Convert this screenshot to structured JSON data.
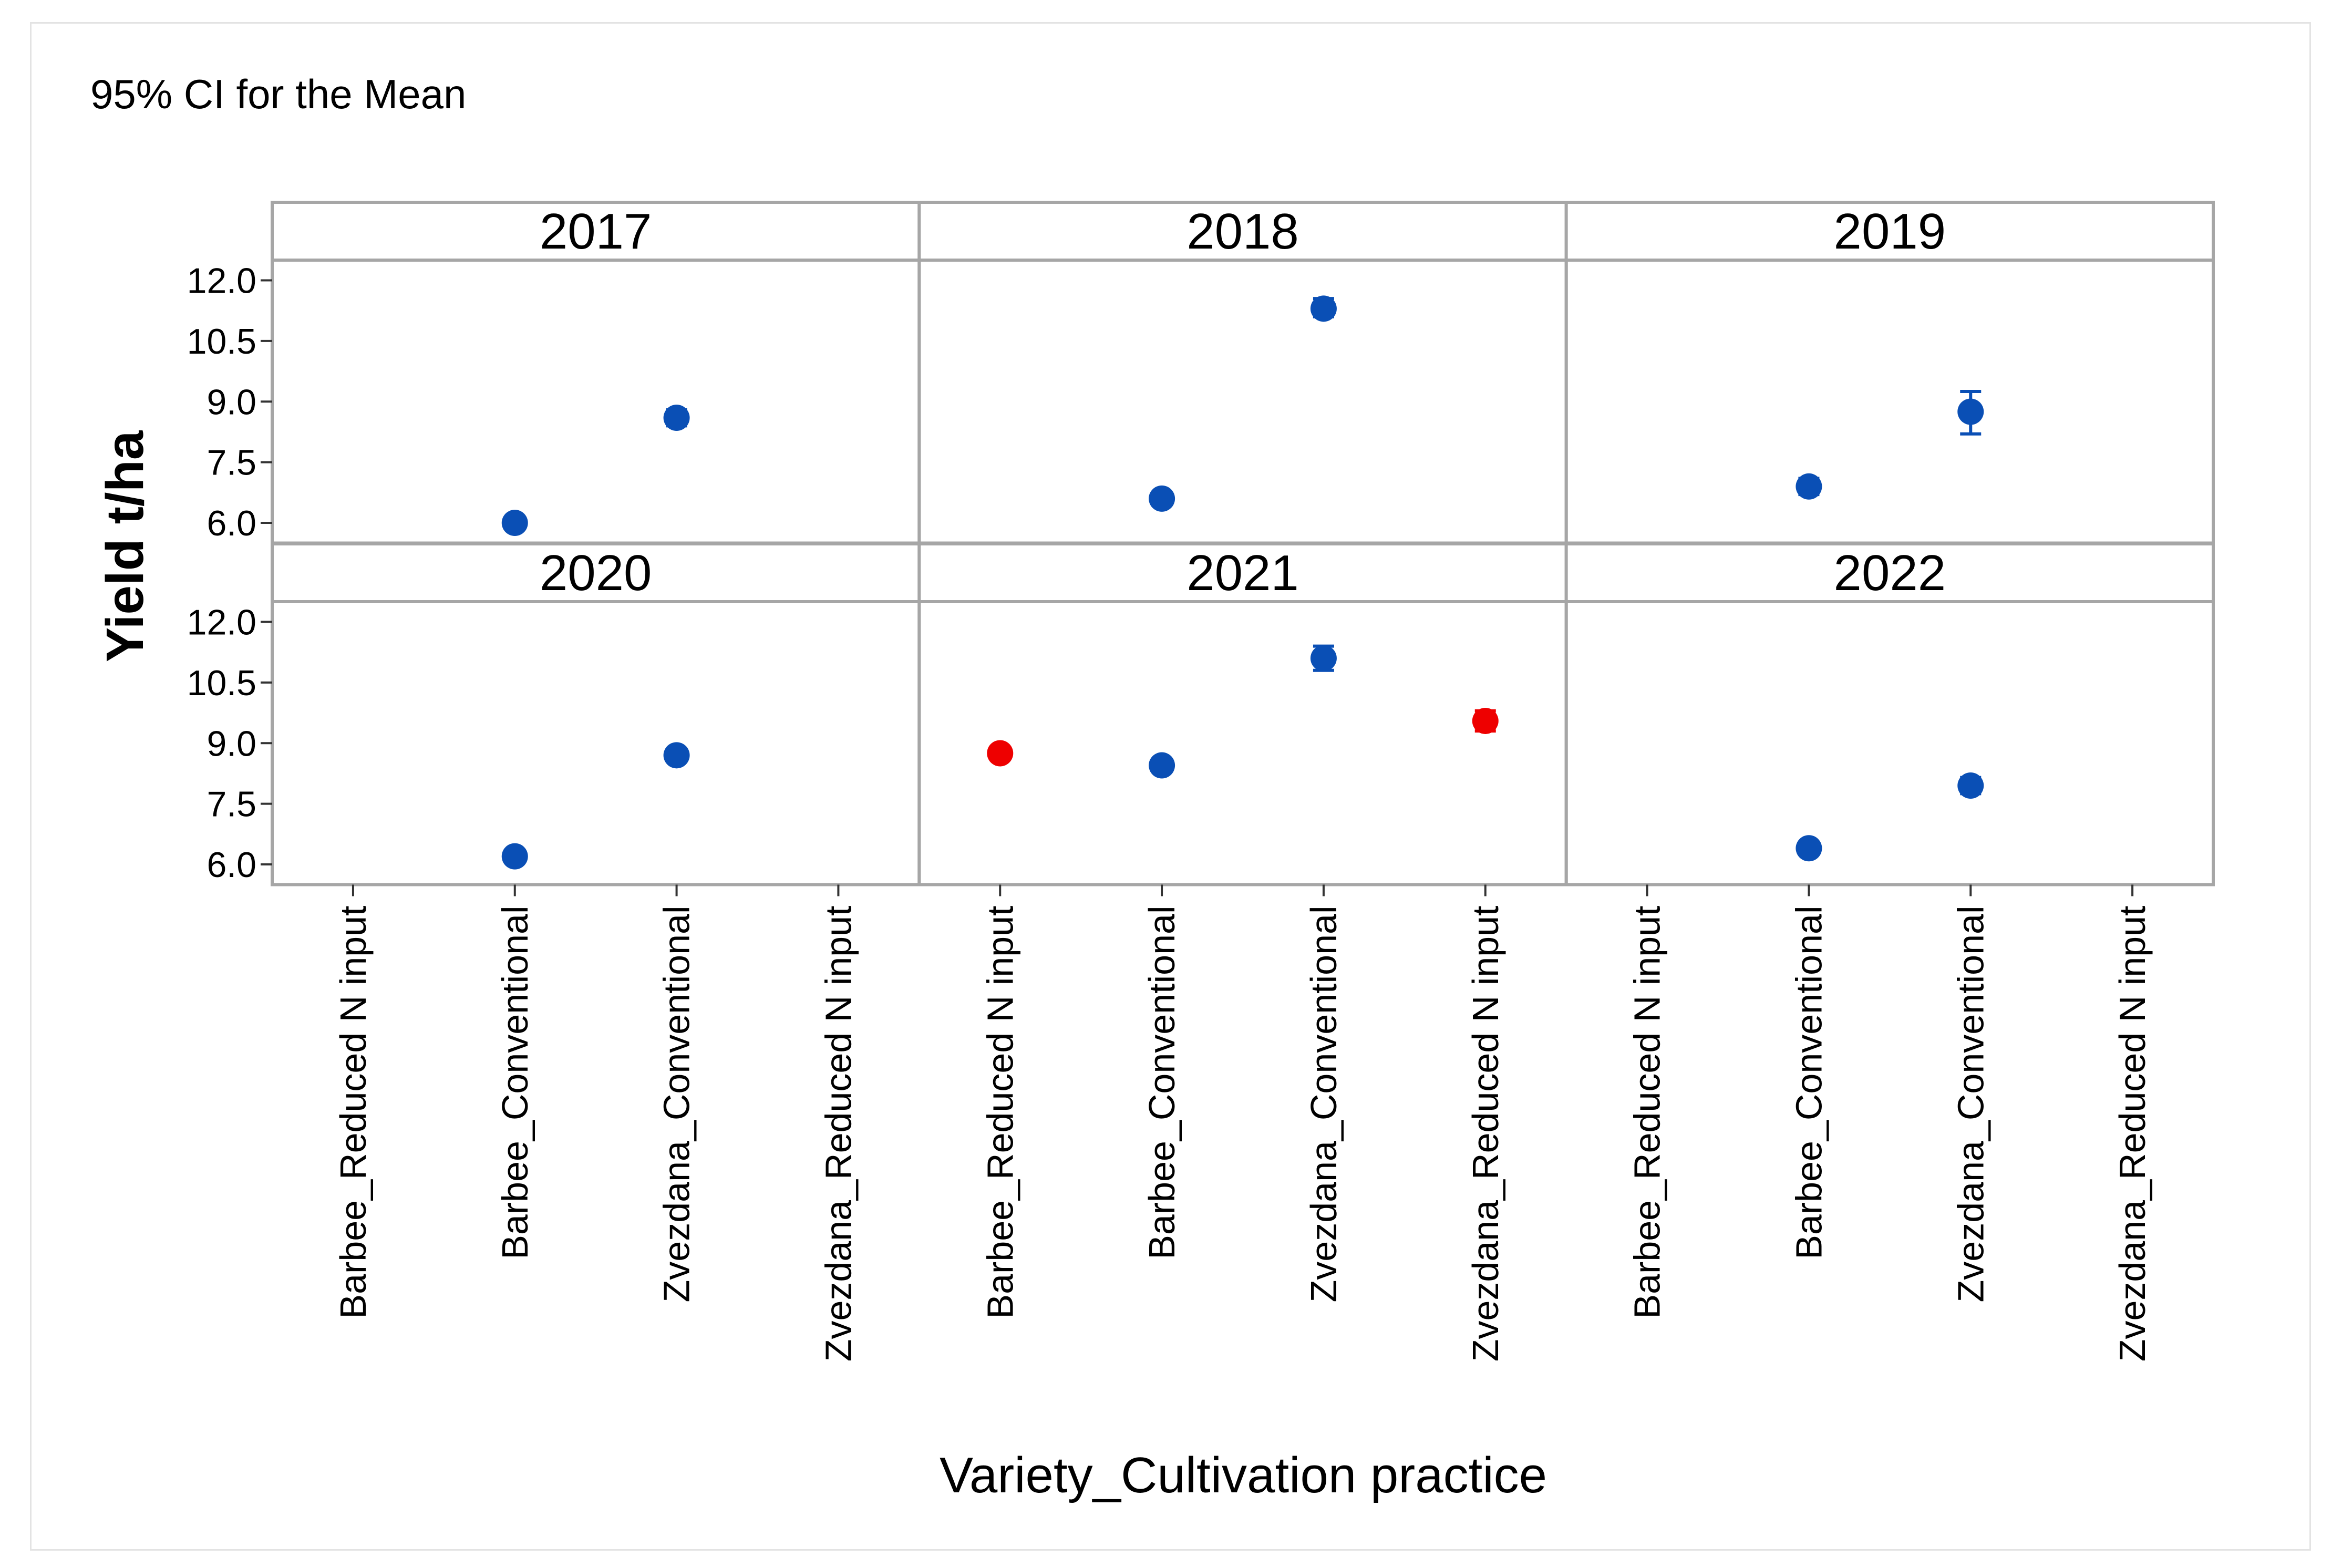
{
  "chart_data": {
    "type": "scatter",
    "title": "95% CI for the Mean",
    "xlabel": "Variety_Cultivation practice",
    "ylabel": "Yield t/ha",
    "ylim": [
      5.5,
      12.5
    ],
    "yticks": [
      "12.0",
      "10.5",
      "9.0",
      "7.5",
      "6.0"
    ],
    "ytick_values": [
      12.0,
      10.5,
      9.0,
      7.5,
      6.0
    ],
    "categories": [
      "Barbee_Reduced N  input",
      "Barbee_Conventional",
      "Zvezdana_Conventional",
      "Zvezdana_Reduced N input"
    ],
    "x_tick_labels": [
      "Barbee_Reduced N  input",
      "Barbee_Conventional",
      "Zvezdana_Conventional",
      "Zvezdana_Reduced N input",
      "Barbee_Reduced N  input",
      "Barbee_Conventional",
      "Zvezdana_Conventional",
      "Zvezdana_Reduced N input",
      "Barbee_Reduced N  input",
      "Barbee_Conventional",
      "Zvezdana_Conventional",
      "Zvezdana_Reduced N input"
    ],
    "colors": {
      "blue": "#0a4fb5",
      "red": "#ee0000",
      "grid": "#a6a6a6"
    },
    "panels": [
      {
        "name": "2017",
        "points": [
          {
            "category": 1,
            "mean": 6.0,
            "lower": 5.85,
            "upper": 6.15,
            "color": "blue"
          },
          {
            "category": 2,
            "mean": 8.6,
            "lower": 8.4,
            "upper": 8.8,
            "color": "blue"
          }
        ]
      },
      {
        "name": "2018",
        "points": [
          {
            "category": 1,
            "mean": 6.6,
            "lower": 6.45,
            "upper": 6.75,
            "color": "blue"
          },
          {
            "category": 2,
            "mean": 11.3,
            "lower": 11.1,
            "upper": 11.55,
            "color": "blue"
          }
        ]
      },
      {
        "name": "2019",
        "points": [
          {
            "category": 1,
            "mean": 6.9,
            "lower": 6.7,
            "upper": 7.1,
            "color": "blue"
          },
          {
            "category": 2,
            "mean": 8.75,
            "lower": 8.2,
            "upper": 9.25,
            "color": "blue"
          }
        ]
      },
      {
        "name": "2020",
        "points": [
          {
            "category": 1,
            "mean": 6.2,
            "lower": 6.05,
            "upper": 6.35,
            "color": "blue"
          },
          {
            "category": 2,
            "mean": 8.7,
            "lower": 8.55,
            "upper": 8.85,
            "color": "blue"
          }
        ]
      },
      {
        "name": "2021",
        "points": [
          {
            "category": 0,
            "mean": 8.75,
            "lower": 8.6,
            "upper": 8.9,
            "color": "red"
          },
          {
            "category": 1,
            "mean": 8.45,
            "lower": 8.35,
            "upper": 8.55,
            "color": "blue"
          },
          {
            "category": 2,
            "mean": 11.1,
            "lower": 10.8,
            "upper": 11.4,
            "color": "blue"
          },
          {
            "category": 3,
            "mean": 9.55,
            "lower": 9.3,
            "upper": 9.8,
            "color": "red"
          }
        ]
      },
      {
        "name": "2022",
        "points": [
          {
            "category": 1,
            "mean": 6.4,
            "lower": 6.25,
            "upper": 6.55,
            "color": "blue"
          },
          {
            "category": 2,
            "mean": 7.95,
            "lower": 7.75,
            "upper": 8.15,
            "color": "blue"
          }
        ]
      }
    ]
  }
}
